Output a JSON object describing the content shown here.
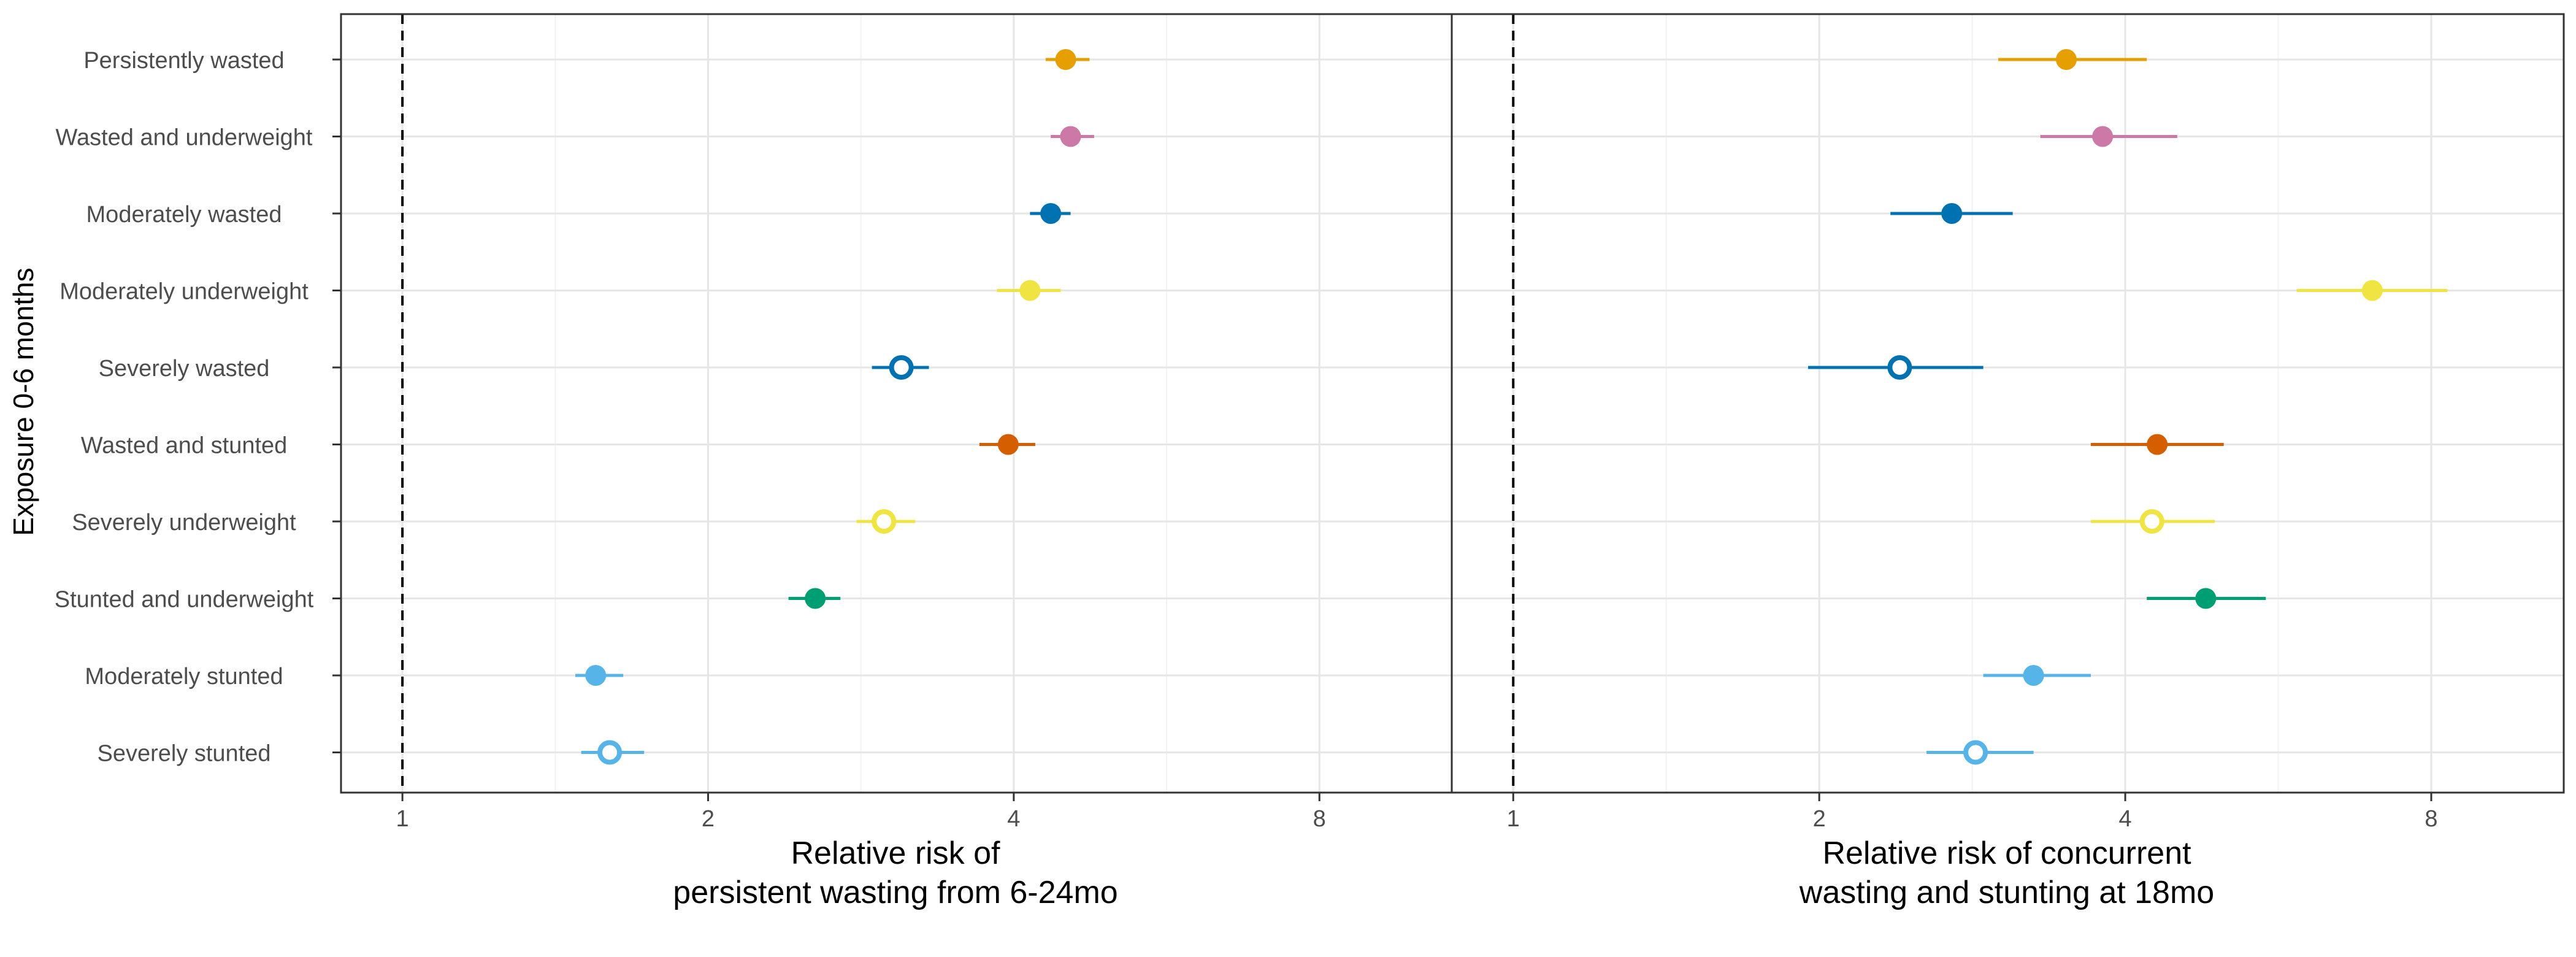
{
  "y_axis_title": "Exposure 0-6 months",
  "categories": [
    "Persistently wasted",
    "Wasted and underweight",
    "Moderately wasted",
    "Moderately underweight",
    "Severely wasted",
    "Wasted and stunted",
    "Severely underweight",
    "Stunted and underweight",
    "Moderately stunted",
    "Severely stunted"
  ],
  "panels": [
    {
      "xlabel_line1": "Relative risk of",
      "xlabel_line2": "persistent wasting from 6-24mo"
    },
    {
      "xlabel_line1": "Relative risk of concurrent",
      "xlabel_line2": "wasting and stunting at 18mo"
    }
  ],
  "chart_data": [
    {
      "type": "scatter",
      "subtype": "forest-plot",
      "x_scale": "log2",
      "x_ticks": [
        1,
        2,
        4,
        8
      ],
      "xlim": [
        0.87,
        10.8
      ],
      "reference_line": 1,
      "grid": true,
      "xlabel": "Relative risk of persistent wasting from 6-24mo",
      "ylabel": "Exposure 0-6 months",
      "points": [
        {
          "category": "Persistently wasted",
          "estimate": 4.5,
          "ci_low": 4.3,
          "ci_high": 4.75,
          "color": "#E69F00",
          "hollow": false
        },
        {
          "category": "Wasted and underweight",
          "estimate": 4.55,
          "ci_low": 4.35,
          "ci_high": 4.8,
          "color": "#CC79A7",
          "hollow": false
        },
        {
          "category": "Moderately wasted",
          "estimate": 4.35,
          "ci_low": 4.15,
          "ci_high": 4.55,
          "color": "#0072B2",
          "hollow": false
        },
        {
          "category": "Moderately underweight",
          "estimate": 4.15,
          "ci_low": 3.85,
          "ci_high": 4.45,
          "color": "#F0E442",
          "hollow": false
        },
        {
          "category": "Severely wasted",
          "estimate": 3.1,
          "ci_low": 2.9,
          "ci_high": 3.3,
          "color": "#0072B2",
          "hollow": true
        },
        {
          "category": "Wasted and stunted",
          "estimate": 3.95,
          "ci_low": 3.7,
          "ci_high": 4.2,
          "color": "#D55E00",
          "hollow": false
        },
        {
          "category": "Severely underweight",
          "estimate": 2.98,
          "ci_low": 2.8,
          "ci_high": 3.2,
          "color": "#F0E442",
          "hollow": true
        },
        {
          "category": "Stunted and underweight",
          "estimate": 2.55,
          "ci_low": 2.4,
          "ci_high": 2.7,
          "color": "#009E73",
          "hollow": false
        },
        {
          "category": "Moderately stunted",
          "estimate": 1.55,
          "ci_low": 1.48,
          "ci_high": 1.65,
          "color": "#56B4E9",
          "hollow": false
        },
        {
          "category": "Severely stunted",
          "estimate": 1.6,
          "ci_low": 1.5,
          "ci_high": 1.73,
          "color": "#56B4E9",
          "hollow": true
        }
      ]
    },
    {
      "type": "scatter",
      "subtype": "forest-plot",
      "x_scale": "log2",
      "x_ticks": [
        1,
        2,
        4,
        8
      ],
      "xlim": [
        0.87,
        10.8
      ],
      "reference_line": 1,
      "grid": true,
      "xlabel": "Relative risk of concurrent wasting and stunting at 18mo",
      "ylabel": "Exposure 0-6 months",
      "points": [
        {
          "category": "Persistently wasted",
          "estimate": 3.5,
          "ci_low": 3.0,
          "ci_high": 4.2,
          "color": "#E69F00",
          "hollow": false
        },
        {
          "category": "Wasted and underweight",
          "estimate": 3.8,
          "ci_low": 3.3,
          "ci_high": 4.5,
          "color": "#CC79A7",
          "hollow": false
        },
        {
          "category": "Moderately wasted",
          "estimate": 2.7,
          "ci_low": 2.35,
          "ci_high": 3.1,
          "color": "#0072B2",
          "hollow": false
        },
        {
          "category": "Moderately underweight",
          "estimate": 7.0,
          "ci_low": 5.9,
          "ci_high": 8.3,
          "color": "#F0E442",
          "hollow": false
        },
        {
          "category": "Severely wasted",
          "estimate": 2.4,
          "ci_low": 1.95,
          "ci_high": 2.9,
          "color": "#0072B2",
          "hollow": true
        },
        {
          "category": "Wasted and stunted",
          "estimate": 4.3,
          "ci_low": 3.7,
          "ci_high": 5.0,
          "color": "#D55E00",
          "hollow": false
        },
        {
          "category": "Severely underweight",
          "estimate": 4.25,
          "ci_low": 3.7,
          "ci_high": 4.9,
          "color": "#F0E442",
          "hollow": true
        },
        {
          "category": "Stunted and underweight",
          "estimate": 4.8,
          "ci_low": 4.2,
          "ci_high": 5.5,
          "color": "#009E73",
          "hollow": false
        },
        {
          "category": "Moderately stunted",
          "estimate": 3.25,
          "ci_low": 2.9,
          "ci_high": 3.7,
          "color": "#56B4E9",
          "hollow": false
        },
        {
          "category": "Severely stunted",
          "estimate": 2.85,
          "ci_low": 2.55,
          "ci_high": 3.25,
          "color": "#56B4E9",
          "hollow": true
        }
      ]
    }
  ]
}
